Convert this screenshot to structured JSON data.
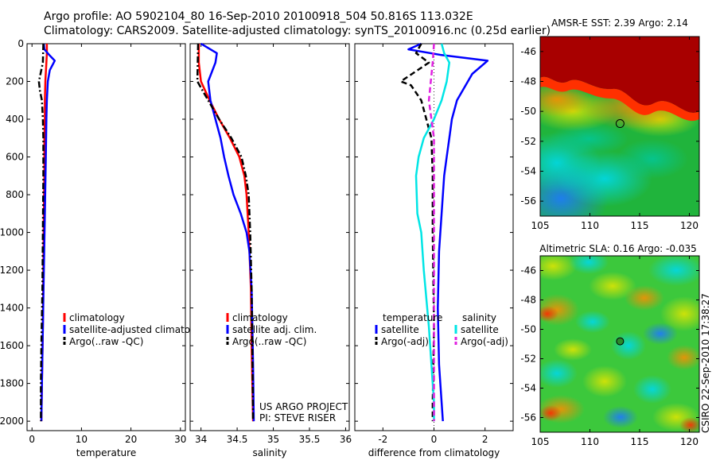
{
  "header": {
    "line1": "Argo profile: AO 5902104_80 16-Sep-2010 20100918_504 50.816S 113.032E",
    "line2": "Climatology: CARS2009. Satellite-adjusted climatology: synTS_20100916.nc (0.25d earlier)"
  },
  "side_label": "CSIRO 22-Sep-2010 17:38:27",
  "colors": {
    "climatology": "#ff0000",
    "satellite": "#0000ff",
    "argo": "#000000",
    "satellite_salinity": "#00e5e5",
    "argo_salinity_adj": "#e020e0"
  },
  "chart_data": [
    {
      "type": "line",
      "id": "temperature",
      "xlabel": "temperature",
      "xlim": [
        -1,
        31
      ],
      "ylim": [
        2050,
        0
      ],
      "y_inverted": true,
      "xticks": [
        0,
        10,
        20,
        30
      ],
      "yticks": [
        0,
        200,
        400,
        600,
        800,
        1000,
        1200,
        1400,
        1600,
        1800,
        2000
      ],
      "legend": {
        "placement": "lower-right",
        "entries": [
          "climatology",
          "satellite-adjusted climatology",
          "Argo(..raw -QC)"
        ]
      },
      "series": [
        {
          "name": "climatology",
          "color": "#ff0000",
          "style": "solid",
          "points": [
            [
              3.0,
              0
            ],
            [
              3.0,
              50
            ],
            [
              2.9,
              100
            ],
            [
              2.7,
              200
            ],
            [
              2.6,
              300
            ],
            [
              2.6,
              400
            ],
            [
              2.5,
              500
            ],
            [
              2.5,
              700
            ],
            [
              2.4,
              900
            ],
            [
              2.3,
              1200
            ],
            [
              2.2,
              1500
            ],
            [
              2.0,
              1800
            ],
            [
              1.9,
              2000
            ]
          ]
        },
        {
          "name": "satellite-adjusted climatology",
          "color": "#0000ff",
          "style": "solid",
          "points": [
            [
              2.4,
              0
            ],
            [
              2.5,
              30
            ],
            [
              3.5,
              60
            ],
            [
              4.6,
              90
            ],
            [
              3.6,
              140
            ],
            [
              3.2,
              200
            ],
            [
              3.0,
              300
            ],
            [
              2.9,
              400
            ],
            [
              2.8,
              600
            ],
            [
              2.6,
              900
            ],
            [
              2.4,
              1200
            ],
            [
              2.2,
              1500
            ],
            [
              2.0,
              1800
            ],
            [
              1.9,
              2000
            ]
          ]
        },
        {
          "name": "Argo(..raw -QC)",
          "color": "#000000",
          "style": "dashdot",
          "points": [
            [
              2.3,
              0
            ],
            [
              2.2,
              100
            ],
            [
              1.4,
              200
            ],
            [
              1.6,
              250
            ],
            [
              2.0,
              300
            ],
            [
              2.2,
              400
            ],
            [
              2.3,
              500
            ],
            [
              2.3,
              700
            ],
            [
              2.2,
              1000
            ],
            [
              2.1,
              1300
            ],
            [
              1.9,
              1600
            ],
            [
              1.8,
              1800
            ],
            [
              1.8,
              2000
            ]
          ]
        }
      ]
    },
    {
      "type": "line",
      "id": "salinity",
      "xlabel": "salinity",
      "xlim": [
        33.85,
        36.05
      ],
      "ylim": [
        2050,
        0
      ],
      "y_inverted": true,
      "xticks": [
        34,
        34.5,
        35,
        35.5,
        36
      ],
      "xtick_labels": [
        "34",
        "34.5",
        "35",
        "35.5",
        "36"
      ],
      "legend": {
        "placement": "lower-right",
        "entries": [
          "climatology",
          "satellite adj. clim.",
          "Argo(..raw -QC)"
        ]
      },
      "annotations": [
        "US ARGO PROJECT",
        "PI: STEVE RISER"
      ],
      "series": [
        {
          "name": "climatology",
          "color": "#ff0000",
          "style": "solid",
          "points": [
            [
              33.97,
              0
            ],
            [
              33.97,
              100
            ],
            [
              34.0,
              200
            ],
            [
              34.12,
              300
            ],
            [
              34.25,
              400
            ],
            [
              34.4,
              500
            ],
            [
              34.53,
              600
            ],
            [
              34.6,
              700
            ],
            [
              34.63,
              800
            ],
            [
              34.66,
              1000
            ],
            [
              34.69,
              1300
            ],
            [
              34.7,
              1600
            ],
            [
              34.72,
              2000
            ]
          ]
        },
        {
          "name": "satellite adj. clim.",
          "color": "#0000ff",
          "style": "solid",
          "points": [
            [
              34.0,
              0
            ],
            [
              34.22,
              50
            ],
            [
              34.2,
              100
            ],
            [
              34.1,
              200
            ],
            [
              34.13,
              300
            ],
            [
              34.2,
              400
            ],
            [
              34.27,
              500
            ],
            [
              34.32,
              600
            ],
            [
              34.38,
              700
            ],
            [
              34.45,
              800
            ],
            [
              34.55,
              900
            ],
            [
              34.63,
              1000
            ],
            [
              34.67,
              1100
            ],
            [
              34.7,
              1300
            ],
            [
              34.71,
              1500
            ],
            [
              34.72,
              1700
            ],
            [
              34.73,
              2000
            ]
          ]
        },
        {
          "name": "Argo(..raw -QC)",
          "color": "#000000",
          "style": "dashdot",
          "points": [
            [
              33.96,
              0
            ],
            [
              33.95,
              200
            ],
            [
              34.1,
              300
            ],
            [
              34.25,
              400
            ],
            [
              34.42,
              500
            ],
            [
              34.56,
              600
            ],
            [
              34.62,
              700
            ],
            [
              34.66,
              800
            ],
            [
              34.68,
              1000
            ],
            [
              34.7,
              1300
            ],
            [
              34.71,
              1600
            ],
            [
              34.72,
              2000
            ]
          ]
        }
      ]
    },
    {
      "type": "line",
      "id": "difference",
      "xlabel": "difference from climatology",
      "xlim": [
        -3.1,
        3.1
      ],
      "ylim": [
        2050,
        0
      ],
      "y_inverted": true,
      "xticks": [
        -2,
        0,
        2
      ],
      "legend": {
        "placement": "lower-center",
        "groups": [
          {
            "title": "temperature",
            "entries": [
              "satellite",
              "Argo(-adj)"
            ]
          },
          {
            "title": "salinity",
            "entries": [
              "satellite",
              "Argo(-adj)"
            ]
          }
        ]
      },
      "series": [
        {
          "name": "temperature satellite",
          "color": "#0000ff",
          "style": "solid",
          "points": [
            [
              -0.5,
              0
            ],
            [
              -1.0,
              30
            ],
            [
              0.3,
              60
            ],
            [
              2.1,
              90
            ],
            [
              1.5,
              160
            ],
            [
              0.9,
              300
            ],
            [
              0.7,
              400
            ],
            [
              0.6,
              500
            ],
            [
              0.5,
              600
            ],
            [
              0.4,
              700
            ],
            [
              0.3,
              900
            ],
            [
              0.2,
              1100
            ],
            [
              0.15,
              1400
            ],
            [
              0.2,
              1700
            ],
            [
              0.3,
              1900
            ],
            [
              0.35,
              2000
            ]
          ]
        },
        {
          "name": "temperature Argo(-adj)",
          "color": "#000000",
          "style": "dashed",
          "points": [
            [
              -0.5,
              0
            ],
            [
              -0.7,
              50
            ],
            [
              -0.2,
              100
            ],
            [
              -1.3,
              200
            ],
            [
              -0.9,
              220
            ],
            [
              -0.5,
              300
            ],
            [
              -0.3,
              400
            ],
            [
              -0.1,
              500
            ],
            [
              -0.05,
              700
            ],
            [
              -0.05,
              1000
            ],
            [
              0.0,
              1500
            ],
            [
              -0.05,
              1900
            ],
            [
              -0.05,
              2000
            ]
          ]
        },
        {
          "name": "salinity satellite",
          "color": "#00e5e5",
          "style": "solid",
          "points": [
            [
              0.3,
              0
            ],
            [
              0.4,
              50
            ],
            [
              0.6,
              100
            ],
            [
              0.5,
              200
            ],
            [
              0.3,
              300
            ],
            [
              0.0,
              400
            ],
            [
              -0.4,
              500
            ],
            [
              -0.6,
              600
            ],
            [
              -0.7,
              700
            ],
            [
              -0.65,
              900
            ],
            [
              -0.5,
              1000
            ],
            [
              -0.4,
              1200
            ],
            [
              -0.2,
              1500
            ],
            [
              -0.1,
              1700
            ],
            [
              0.0,
              1900
            ],
            [
              0.0,
              2000
            ]
          ]
        },
        {
          "name": "salinity Argo(-adj)",
          "color": "#e020e0",
          "style": "dashed",
          "points": [
            [
              0.0,
              0
            ],
            [
              -0.05,
              100
            ],
            [
              -0.2,
              300
            ],
            [
              -0.1,
              400
            ],
            [
              0.0,
              500
            ],
            [
              0.0,
              1000
            ],
            [
              0.0,
              2000
            ]
          ]
        }
      ]
    },
    {
      "type": "heatmap",
      "id": "sst",
      "title": "AMSR-E SST: 2.39 Argo: 2.14",
      "xlim": [
        105,
        121
      ],
      "ylim": [
        -57,
        -45
      ],
      "xticks": [
        105,
        110,
        115,
        120
      ],
      "yticks": [
        -46,
        -48,
        -50,
        -52,
        -54,
        -56
      ],
      "marker": {
        "x": 113.032,
        "y": -50.816
      }
    },
    {
      "type": "heatmap",
      "id": "sla",
      "title": "Altimetric SLA: 0.16 Argo: -0.035",
      "xlim": [
        105,
        121
      ],
      "ylim": [
        -57,
        -45
      ],
      "xticks": [
        105,
        110,
        115,
        120
      ],
      "yticks": [
        -46,
        -48,
        -50,
        -52,
        -54,
        -56
      ],
      "marker": {
        "x": 113.032,
        "y": -50.816
      }
    }
  ]
}
